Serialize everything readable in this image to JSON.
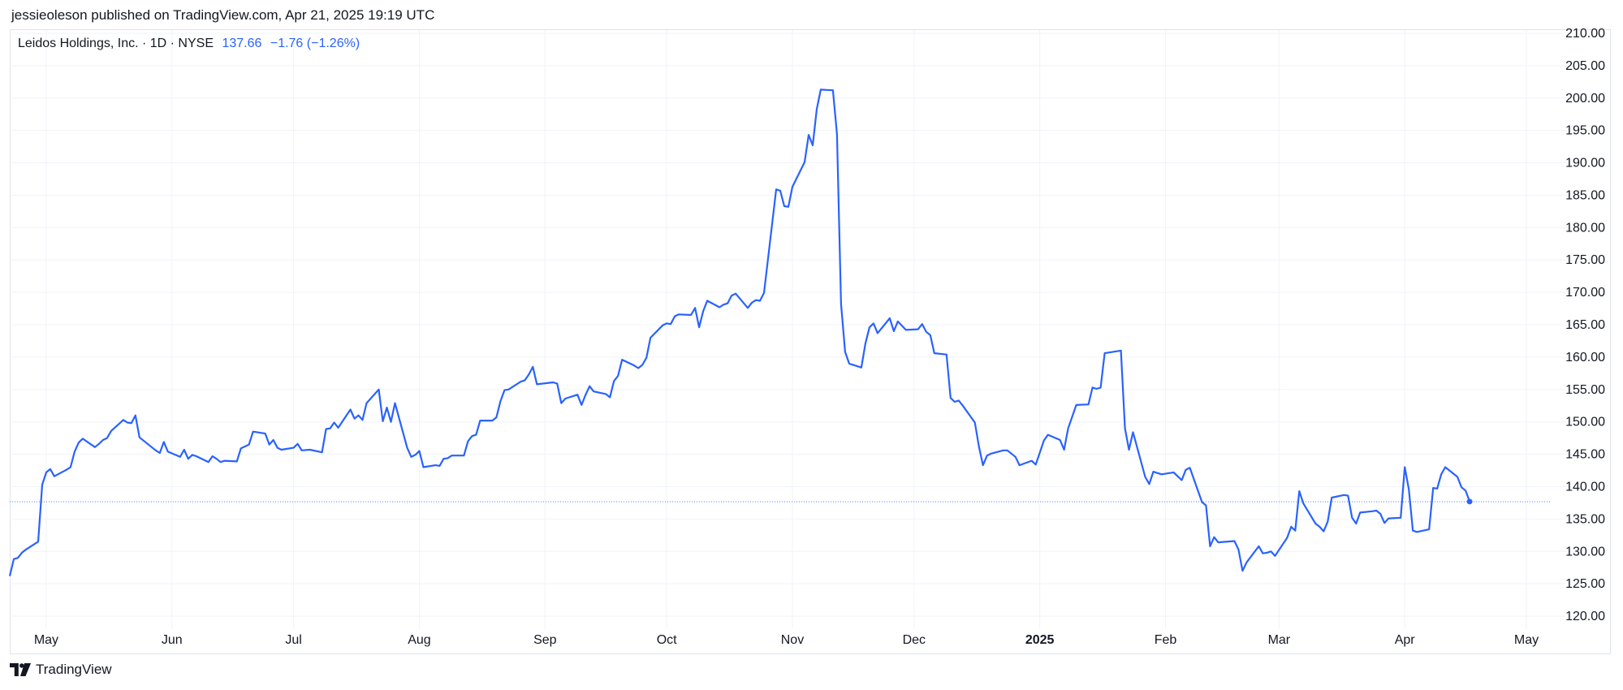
{
  "header": {
    "published_line": "jessieoleson published on TradingView.com, Apr 21, 2025 19:19 UTC"
  },
  "legend": {
    "symbol_line": "Leidos Holdings, Inc. · 1D · NYSE",
    "last": "137.66",
    "change": "−1.76 (−1.26%)"
  },
  "footer": {
    "brand": "TradingView",
    "logo_icon": "tradingview-logo-icon"
  },
  "colors": {
    "line": "#2962ff",
    "grid": "#f0f3fa",
    "axis_text": "#131722"
  },
  "chart_data": {
    "type": "line",
    "title": "",
    "xlabel": "",
    "ylabel": "",
    "ylim": [
      118,
      210.5
    ],
    "yticks": [
      120,
      125,
      130,
      135,
      140,
      145,
      150,
      155,
      160,
      165,
      170,
      175,
      180,
      185,
      190,
      195,
      200,
      205,
      210
    ],
    "ytick_labels": [
      "120.00",
      "125.00",
      "130.00",
      "135.00",
      "140.00",
      "145.00",
      "150.00",
      "155.00",
      "160.00",
      "165.00",
      "170.00",
      "175.00",
      "180.00",
      "185.00",
      "190.00",
      "195.00",
      "200.00",
      "205.00",
      "210.00"
    ],
    "xlim": [
      "2024-04-22",
      "2025-05-07"
    ],
    "xticks": [
      {
        "date": "2024-05-01",
        "label": "May",
        "bold": false
      },
      {
        "date": "2024-06-01",
        "label": "Jun",
        "bold": false
      },
      {
        "date": "2024-07-01",
        "label": "Jul",
        "bold": false
      },
      {
        "date": "2024-08-01",
        "label": "Aug",
        "bold": false
      },
      {
        "date": "2024-09-01",
        "label": "Sep",
        "bold": false
      },
      {
        "date": "2024-10-01",
        "label": "Oct",
        "bold": false
      },
      {
        "date": "2024-11-01",
        "label": "Nov",
        "bold": false
      },
      {
        "date": "2024-12-01",
        "label": "Dec",
        "bold": false
      },
      {
        "date": "2025-01-01",
        "label": "2025",
        "bold": true
      },
      {
        "date": "2025-02-01",
        "label": "Feb",
        "bold": false
      },
      {
        "date": "2025-03-01",
        "label": "Mar",
        "bold": false
      },
      {
        "date": "2025-04-01",
        "label": "Apr",
        "bold": false
      },
      {
        "date": "2025-05-01",
        "label": "May",
        "bold": false
      }
    ],
    "grid": true,
    "last_price_line": 137.66,
    "series": [
      {
        "points": [
          [
            "2024-04-22",
            126.2
          ],
          [
            "2024-04-23",
            128.8
          ],
          [
            "2024-04-24",
            129.0
          ],
          [
            "2024-04-25",
            129.8
          ],
          [
            "2024-04-26",
            130.3
          ],
          [
            "2024-04-29",
            131.5
          ],
          [
            "2024-04-30",
            140.3
          ],
          [
            "2024-05-01",
            142.2
          ],
          [
            "2024-05-02",
            142.7
          ],
          [
            "2024-05-03",
            141.6
          ],
          [
            "2024-05-06",
            142.6
          ],
          [
            "2024-05-07",
            143.0
          ],
          [
            "2024-05-08",
            145.4
          ],
          [
            "2024-05-09",
            146.8
          ],
          [
            "2024-05-10",
            147.4
          ],
          [
            "2024-05-13",
            146.1
          ],
          [
            "2024-05-14",
            146.6
          ],
          [
            "2024-05-15",
            147.2
          ],
          [
            "2024-05-16",
            147.5
          ],
          [
            "2024-05-17",
            148.6
          ],
          [
            "2024-05-20",
            150.3
          ],
          [
            "2024-05-21",
            149.9
          ],
          [
            "2024-05-22",
            149.8
          ],
          [
            "2024-05-23",
            151.0
          ],
          [
            "2024-05-24",
            147.6
          ],
          [
            "2024-05-28",
            145.6
          ],
          [
            "2024-05-29",
            145.2
          ],
          [
            "2024-05-30",
            146.9
          ],
          [
            "2024-05-31",
            145.4
          ],
          [
            "2024-06-03",
            144.6
          ],
          [
            "2024-06-04",
            145.7
          ],
          [
            "2024-06-05",
            144.3
          ],
          [
            "2024-06-06",
            144.9
          ],
          [
            "2024-06-07",
            144.7
          ],
          [
            "2024-06-10",
            143.8
          ],
          [
            "2024-06-11",
            144.7
          ],
          [
            "2024-06-12",
            144.3
          ],
          [
            "2024-06-13",
            143.8
          ],
          [
            "2024-06-14",
            144.0
          ],
          [
            "2024-06-17",
            143.9
          ],
          [
            "2024-06-18",
            145.9
          ],
          [
            "2024-06-20",
            146.5
          ],
          [
            "2024-06-21",
            148.5
          ],
          [
            "2024-06-24",
            148.2
          ],
          [
            "2024-06-25",
            146.5
          ],
          [
            "2024-06-26",
            147.2
          ],
          [
            "2024-06-27",
            146.0
          ],
          [
            "2024-06-28",
            145.7
          ],
          [
            "2024-07-01",
            146.0
          ],
          [
            "2024-07-02",
            146.6
          ],
          [
            "2024-07-03",
            145.6
          ],
          [
            "2024-07-05",
            145.7
          ],
          [
            "2024-07-08",
            145.3
          ],
          [
            "2024-07-09",
            148.9
          ],
          [
            "2024-07-10",
            149.0
          ],
          [
            "2024-07-11",
            149.9
          ],
          [
            "2024-07-12",
            149.1
          ],
          [
            "2024-07-15",
            151.9
          ],
          [
            "2024-07-16",
            150.5
          ],
          [
            "2024-07-17",
            151.0
          ],
          [
            "2024-07-18",
            150.3
          ],
          [
            "2024-07-19",
            152.9
          ],
          [
            "2024-07-22",
            155.0
          ],
          [
            "2024-07-23",
            150.1
          ],
          [
            "2024-07-24",
            152.2
          ],
          [
            "2024-07-25",
            150.0
          ],
          [
            "2024-07-26",
            152.9
          ],
          [
            "2024-07-29",
            146.0
          ],
          [
            "2024-07-30",
            144.6
          ],
          [
            "2024-07-31",
            144.9
          ],
          [
            "2024-08-01",
            145.5
          ],
          [
            "2024-08-02",
            143.0
          ],
          [
            "2024-08-05",
            143.3
          ],
          [
            "2024-08-06",
            143.2
          ],
          [
            "2024-08-07",
            144.3
          ],
          [
            "2024-08-08",
            144.4
          ],
          [
            "2024-08-09",
            144.8
          ],
          [
            "2024-08-12",
            144.8
          ],
          [
            "2024-08-13",
            147.0
          ],
          [
            "2024-08-14",
            147.8
          ],
          [
            "2024-08-15",
            148.0
          ],
          [
            "2024-08-16",
            150.2
          ],
          [
            "2024-08-19",
            150.2
          ],
          [
            "2024-08-20",
            150.7
          ],
          [
            "2024-08-21",
            153.2
          ],
          [
            "2024-08-22",
            154.9
          ],
          [
            "2024-08-23",
            155.0
          ],
          [
            "2024-08-26",
            156.2
          ],
          [
            "2024-08-27",
            156.4
          ],
          [
            "2024-08-28",
            157.3
          ],
          [
            "2024-08-29",
            158.5
          ],
          [
            "2024-08-30",
            155.8
          ],
          [
            "2024-09-03",
            156.1
          ],
          [
            "2024-09-04",
            155.9
          ],
          [
            "2024-09-05",
            152.9
          ],
          [
            "2024-09-06",
            153.6
          ],
          [
            "2024-09-09",
            154.2
          ],
          [
            "2024-09-10",
            152.6
          ],
          [
            "2024-09-11",
            154.2
          ],
          [
            "2024-09-12",
            155.5
          ],
          [
            "2024-09-13",
            154.7
          ],
          [
            "2024-09-16",
            154.3
          ],
          [
            "2024-09-17",
            153.8
          ],
          [
            "2024-09-18",
            156.3
          ],
          [
            "2024-09-19",
            157.1
          ],
          [
            "2024-09-20",
            159.6
          ],
          [
            "2024-09-23",
            158.7
          ],
          [
            "2024-09-24",
            158.3
          ],
          [
            "2024-09-25",
            158.8
          ],
          [
            "2024-09-26",
            159.9
          ],
          [
            "2024-09-27",
            163.0
          ],
          [
            "2024-09-30",
            164.9
          ],
          [
            "2024-10-01",
            165.2
          ],
          [
            "2024-10-02",
            165.1
          ],
          [
            "2024-10-03",
            166.3
          ],
          [
            "2024-10-04",
            166.6
          ],
          [
            "2024-10-07",
            166.5
          ],
          [
            "2024-10-08",
            167.6
          ],
          [
            "2024-10-09",
            164.6
          ],
          [
            "2024-10-10",
            167.1
          ],
          [
            "2024-10-11",
            168.7
          ],
          [
            "2024-10-14",
            167.7
          ],
          [
            "2024-10-15",
            168.1
          ],
          [
            "2024-10-16",
            168.3
          ],
          [
            "2024-10-17",
            169.5
          ],
          [
            "2024-10-18",
            169.8
          ],
          [
            "2024-10-21",
            167.6
          ],
          [
            "2024-10-22",
            168.4
          ],
          [
            "2024-10-23",
            168.8
          ],
          [
            "2024-10-24",
            168.7
          ],
          [
            "2024-10-25",
            169.9
          ],
          [
            "2024-10-28",
            185.9
          ],
          [
            "2024-10-29",
            185.7
          ],
          [
            "2024-10-30",
            183.3
          ],
          [
            "2024-10-31",
            183.2
          ],
          [
            "2024-11-01",
            186.3
          ],
          [
            "2024-11-04",
            190.1
          ],
          [
            "2024-11-05",
            194.3
          ],
          [
            "2024-11-06",
            192.7
          ],
          [
            "2024-11-07",
            198.3
          ],
          [
            "2024-11-08",
            201.3
          ],
          [
            "2024-11-11",
            201.2
          ],
          [
            "2024-11-12",
            194.4
          ],
          [
            "2024-11-13",
            168.2
          ],
          [
            "2024-11-14",
            160.8
          ],
          [
            "2024-11-15",
            159.0
          ],
          [
            "2024-11-18",
            158.4
          ],
          [
            "2024-11-19",
            162.1
          ],
          [
            "2024-11-20",
            164.6
          ],
          [
            "2024-11-21",
            165.2
          ],
          [
            "2024-11-22",
            163.7
          ],
          [
            "2024-11-25",
            166.0
          ],
          [
            "2024-11-26",
            164.0
          ],
          [
            "2024-11-27",
            165.5
          ],
          [
            "2024-11-29",
            164.2
          ],
          [
            "2024-12-02",
            164.3
          ],
          [
            "2024-12-03",
            165.1
          ],
          [
            "2024-12-04",
            163.9
          ],
          [
            "2024-12-05",
            163.4
          ],
          [
            "2024-12-06",
            160.6
          ],
          [
            "2024-12-09",
            160.4
          ],
          [
            "2024-12-10",
            153.7
          ],
          [
            "2024-12-11",
            153.1
          ],
          [
            "2024-12-12",
            153.3
          ],
          [
            "2024-12-13",
            152.5
          ],
          [
            "2024-12-16",
            149.9
          ],
          [
            "2024-12-17",
            146.2
          ],
          [
            "2024-12-18",
            143.3
          ],
          [
            "2024-12-19",
            144.8
          ],
          [
            "2024-12-20",
            145.1
          ],
          [
            "2024-12-23",
            145.6
          ],
          [
            "2024-12-24",
            145.6
          ],
          [
            "2024-12-26",
            144.6
          ],
          [
            "2024-12-27",
            143.3
          ],
          [
            "2024-12-30",
            144.0
          ],
          [
            "2024-12-31",
            143.4
          ],
          [
            "2025-01-02",
            147.1
          ],
          [
            "2025-01-03",
            148.0
          ],
          [
            "2025-01-06",
            147.2
          ],
          [
            "2025-01-07",
            145.7
          ],
          [
            "2025-01-08",
            149.0
          ],
          [
            "2025-01-10",
            152.6
          ],
          [
            "2025-01-13",
            152.7
          ],
          [
            "2025-01-14",
            155.3
          ],
          [
            "2025-01-15",
            155.1
          ],
          [
            "2025-01-16",
            155.3
          ],
          [
            "2025-01-17",
            160.6
          ],
          [
            "2025-01-21",
            161.0
          ],
          [
            "2025-01-22",
            149.0
          ],
          [
            "2025-01-23",
            145.7
          ],
          [
            "2025-01-24",
            148.4
          ],
          [
            "2025-01-27",
            141.5
          ],
          [
            "2025-01-28",
            140.4
          ],
          [
            "2025-01-29",
            142.3
          ],
          [
            "2025-01-30",
            142.1
          ],
          [
            "2025-01-31",
            141.9
          ],
          [
            "2025-02-03",
            142.2
          ],
          [
            "2025-02-04",
            141.6
          ],
          [
            "2025-02-05",
            141.0
          ],
          [
            "2025-02-06",
            142.6
          ],
          [
            "2025-02-07",
            142.9
          ],
          [
            "2025-02-10",
            137.6
          ],
          [
            "2025-02-11",
            137.1
          ],
          [
            "2025-02-12",
            130.8
          ],
          [
            "2025-02-13",
            132.2
          ],
          [
            "2025-02-14",
            131.4
          ],
          [
            "2025-02-18",
            131.6
          ],
          [
            "2025-02-19",
            130.3
          ],
          [
            "2025-02-20",
            127.0
          ],
          [
            "2025-02-21",
            128.3
          ],
          [
            "2025-02-24",
            130.8
          ],
          [
            "2025-02-25",
            129.7
          ],
          [
            "2025-02-26",
            129.8
          ],
          [
            "2025-02-27",
            130.0
          ],
          [
            "2025-02-28",
            129.3
          ],
          [
            "2025-03-03",
            132.1
          ],
          [
            "2025-03-04",
            133.8
          ],
          [
            "2025-03-05",
            133.2
          ],
          [
            "2025-03-06",
            139.3
          ],
          [
            "2025-03-07",
            137.4
          ],
          [
            "2025-03-10",
            134.3
          ],
          [
            "2025-03-11",
            133.8
          ],
          [
            "2025-03-12",
            133.1
          ],
          [
            "2025-03-13",
            134.6
          ],
          [
            "2025-03-14",
            138.3
          ],
          [
            "2025-03-17",
            138.7
          ],
          [
            "2025-03-18",
            138.6
          ],
          [
            "2025-03-19",
            135.2
          ],
          [
            "2025-03-20",
            134.3
          ],
          [
            "2025-03-21",
            136.0
          ],
          [
            "2025-03-24",
            136.2
          ],
          [
            "2025-03-25",
            136.3
          ],
          [
            "2025-03-26",
            135.8
          ],
          [
            "2025-03-27",
            134.4
          ],
          [
            "2025-03-28",
            135.1
          ],
          [
            "2025-03-31",
            135.2
          ],
          [
            "2025-04-01",
            143.0
          ],
          [
            "2025-04-02",
            139.6
          ],
          [
            "2025-04-03",
            133.2
          ],
          [
            "2025-04-04",
            133.0
          ],
          [
            "2025-04-07",
            133.4
          ],
          [
            "2025-04-08",
            139.8
          ],
          [
            "2025-04-09",
            139.7
          ],
          [
            "2025-04-10",
            141.9
          ],
          [
            "2025-04-11",
            143.0
          ],
          [
            "2025-04-14",
            141.5
          ],
          [
            "2025-04-15",
            139.9
          ],
          [
            "2025-04-16",
            139.4
          ],
          [
            "2025-04-17",
            137.7
          ]
        ]
      }
    ]
  }
}
